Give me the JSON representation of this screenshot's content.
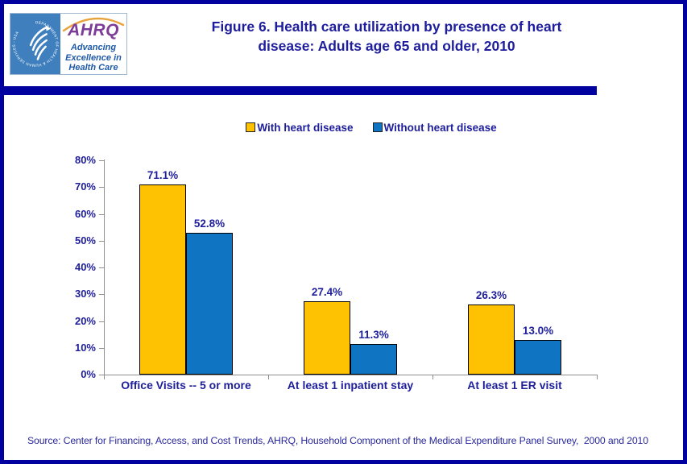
{
  "header": {
    "title_lines": [
      "Figure 6. Health care utilization by presence of heart",
      "disease: Adults age 65 and older, 2010"
    ],
    "logo": {
      "hhs_circle_text": "DEPARTMENT OF HEALTH & HUMAN SERVICES - USA",
      "ahrq_acronym": "AHRQ",
      "tagline_lines": [
        "Advancing",
        "Excellence in",
        "Health Care"
      ]
    }
  },
  "chart_data": {
    "type": "bar",
    "title": "Figure 6. Health care utilization by presence of heart disease: Adults age 65 and older, 2010",
    "categories": [
      "Office Visits -- 5 or more",
      "At least 1 inpatient stay",
      "At least 1 ER visit"
    ],
    "series": [
      {
        "name": "With heart disease",
        "color": "#FFC203",
        "values": [
          71.1,
          27.4,
          26.3
        ],
        "labels": [
          "71.1%",
          "27.4%",
          "26.3%"
        ]
      },
      {
        "name": "Without heart disease",
        "color": "#0F75C2",
        "values": [
          52.8,
          11.3,
          13.0
        ],
        "labels": [
          "52.8%",
          "11.3%",
          "13.0%"
        ]
      }
    ],
    "xlabel": "",
    "ylabel": "",
    "ylim": [
      0,
      80
    ],
    "ytick_labels": [
      "0%",
      "10%",
      "20%",
      "30%",
      "40%",
      "50%",
      "60%",
      "70%",
      "80%"
    ],
    "grid": false,
    "legend_position": "top"
  },
  "footer": {
    "source": "Source: Center for Financing, Access, and Cost Trends, AHRQ, Household Component of the Medical Expenditure Panel Survey,  2000 and 2010"
  },
  "colors": {
    "navy_accent": "#0101A0",
    "text_navy": "#1E1E9C",
    "axis_gray": "#8E8E8E",
    "bar_with_disease": "#FFC203",
    "bar_without_disease": "#0F75C2",
    "hhs_seal_blue": "#3F7FBE",
    "ahrq_purple": "#7D3C98",
    "swoosh_orange": "#E8A33D",
    "tagline_blue": "#1F5AA8"
  }
}
